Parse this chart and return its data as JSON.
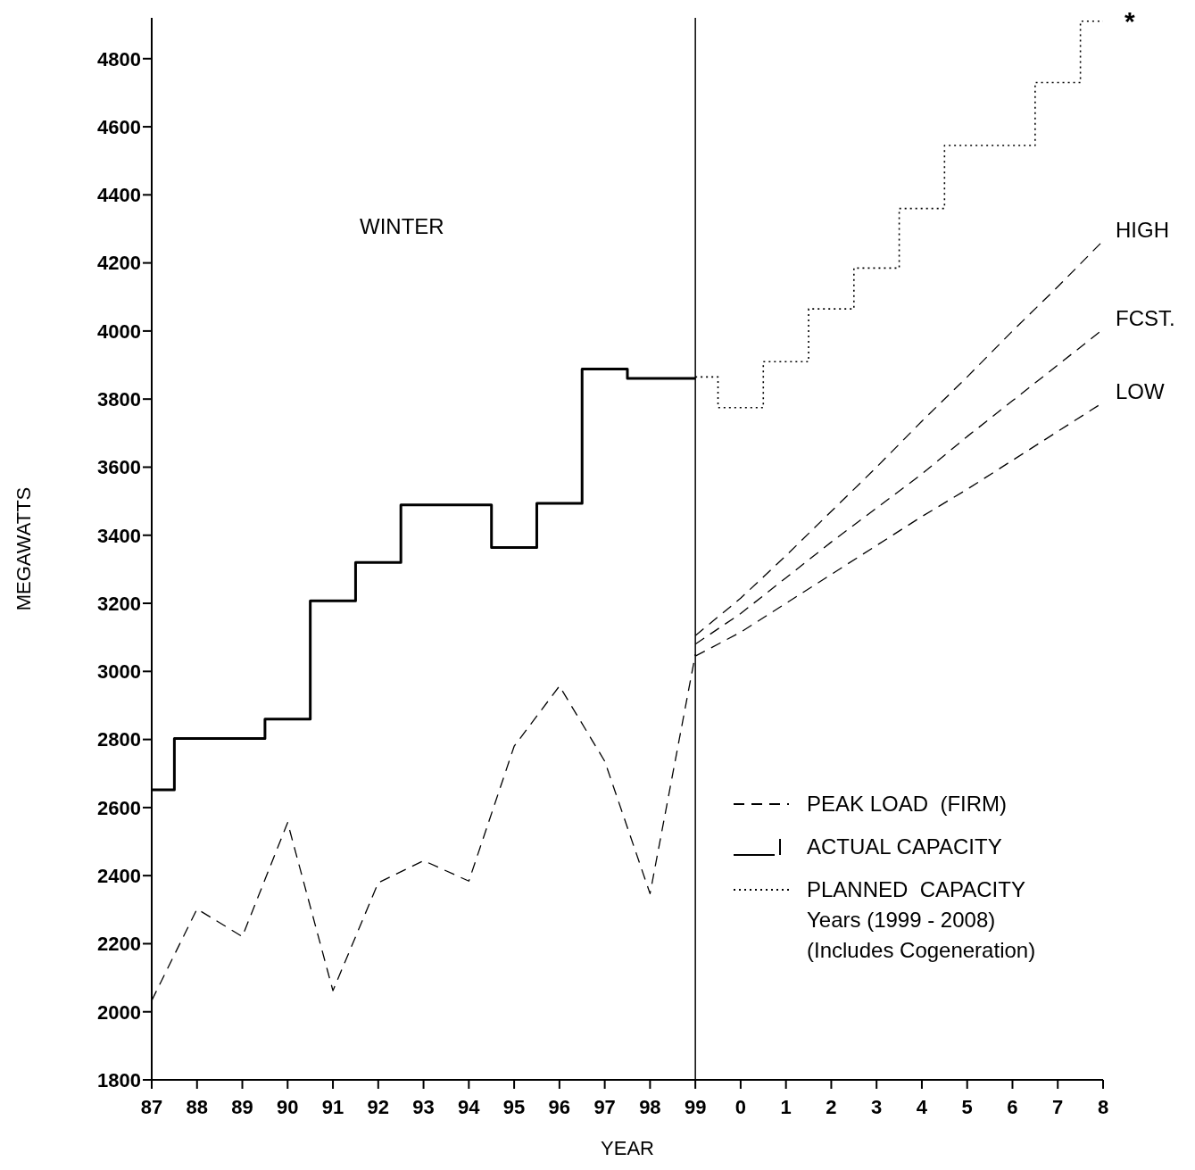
{
  "chart_data": {
    "type": "line",
    "xlabel": "YEAR",
    "ylabel": "MEGAWATTS",
    "categories": [
      "87",
      "88",
      "89",
      "90",
      "91",
      "92",
      "93",
      "94",
      "95",
      "96",
      "97",
      "98",
      "99",
      "0",
      "1",
      "2",
      "3",
      "4",
      "5",
      "6",
      "7",
      "8"
    ],
    "ylim": [
      1800,
      4920
    ],
    "yticks": [
      1800,
      2000,
      2200,
      2400,
      2600,
      2800,
      3000,
      3200,
      3400,
      3600,
      3800,
      4000,
      4200,
      4400,
      4600,
      4800
    ],
    "grid": false,
    "legend": "bottom right",
    "marker": "none",
    "series": [
      {
        "name": "PEAK LOAD  (FIRM)",
        "line_style": "dashed",
        "color": "#000000",
        "values": [
          2033,
          2302,
          2221,
          2556,
          2062,
          2379,
          2444,
          2384,
          2780,
          2957,
          2736,
          2347,
          3050,
          null,
          null,
          null,
          null,
          null,
          null,
          null,
          null,
          null
        ]
      },
      {
        "name": "ACTUAL CAPACITY",
        "type": "step",
        "line_style": "solid",
        "color": "#000000",
        "values": [
          2652,
          2803,
          2803,
          2860,
          3207,
          3320,
          3489,
          3489,
          3364,
          3494,
          3888,
          3861,
          3861,
          null,
          null,
          null,
          null,
          null,
          null,
          null,
          null,
          null
        ]
      },
      {
        "name": "PLANNED  CAPACITY\nYears (1999 - 2008)\n(Includes Cogeneration)",
        "type": "step",
        "line_style": "dotted",
        "color": "#000000",
        "values": [
          null,
          null,
          null,
          null,
          null,
          null,
          null,
          null,
          null,
          null,
          null,
          null,
          3865,
          3775,
          3910,
          4065,
          4185,
          4360,
          4545,
          4545,
          4730,
          4910
        ]
      },
      {
        "name": "HIGH",
        "line_style": "dashed",
        "color": "#000000",
        "values": [
          null,
          null,
          null,
          null,
          null,
          null,
          null,
          null,
          null,
          null,
          null,
          null,
          3105,
          3215,
          3340,
          3470,
          3600,
          3735,
          3865,
          4000,
          4130,
          4265
        ]
      },
      {
        "name": "FCST.",
        "line_style": "dashed",
        "color": "#000000",
        "values": [
          null,
          null,
          null,
          null,
          null,
          null,
          null,
          null,
          null,
          null,
          null,
          null,
          3080,
          3170,
          3275,
          3380,
          3480,
          3580,
          3690,
          3795,
          3900,
          4005
        ]
      },
      {
        "name": "LOW",
        "line_style": "dashed",
        "color": "#000000",
        "values": [
          null,
          null,
          null,
          null,
          null,
          null,
          null,
          null,
          null,
          null,
          null,
          null,
          3045,
          3115,
          3200,
          3285,
          3370,
          3455,
          3535,
          3620,
          3705,
          3790
        ]
      }
    ],
    "ref_lines": [
      {
        "axis": "x",
        "value": "99",
        "color": "#000000",
        "line_style": "solid"
      }
    ],
    "annotations": [
      "WINTER",
      {
        "text": "*",
        "x": "8",
        "y": 4910
      }
    ]
  }
}
